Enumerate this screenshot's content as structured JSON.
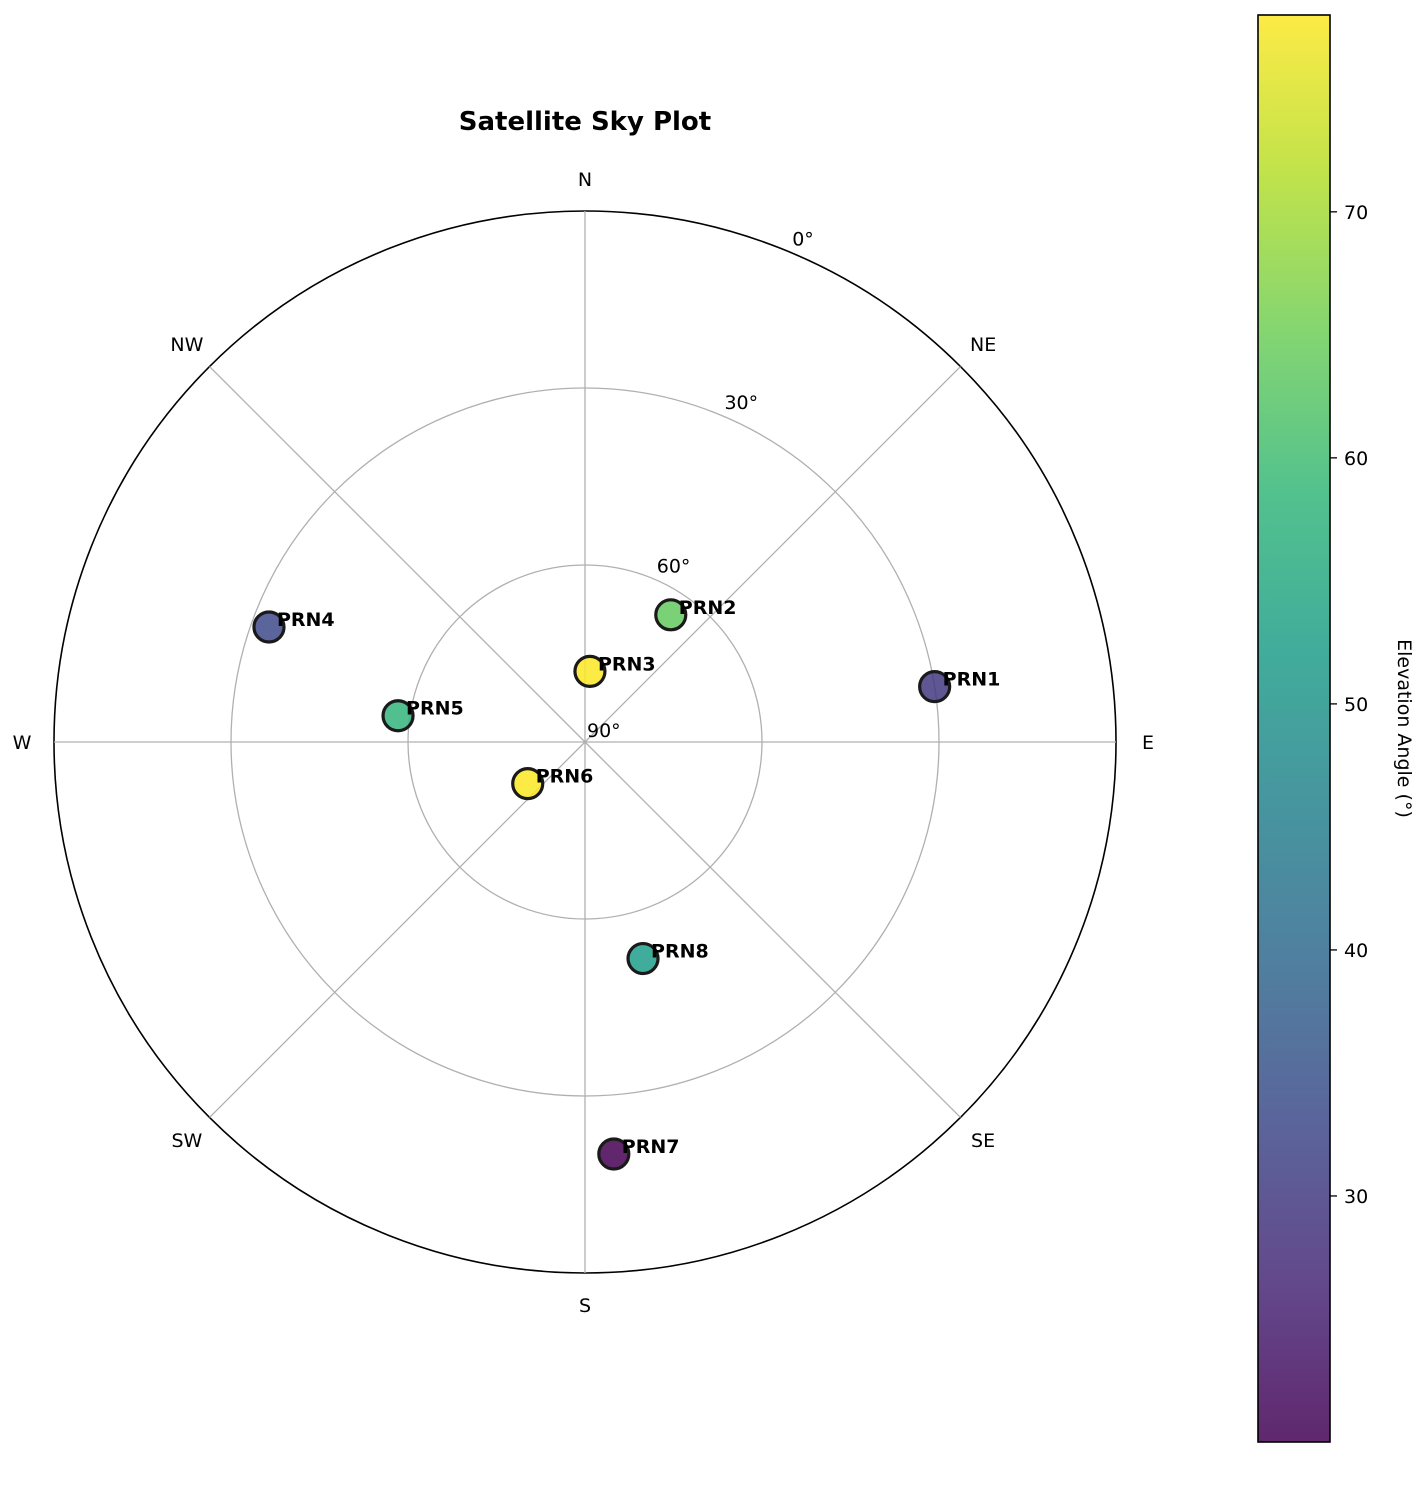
{
  "chart_data": {
    "type": "scatter",
    "projection": "polar-sky-plot",
    "title": "Satellite Sky Plot",
    "orientation": "north-up, clockwise azimuth",
    "directions": [
      "N",
      "NE",
      "E",
      "SE",
      "S",
      "SW",
      "W",
      "NW"
    ],
    "elevation_rings": [
      0,
      30,
      60,
      90
    ],
    "elevation_ring_labels": [
      "0°",
      "30°",
      "60°",
      "90°"
    ],
    "radial_range": [
      0,
      90
    ],
    "grid": true,
    "satellites": [
      {
        "name": "PRN1",
        "azimuth": 81,
        "elevation": 30
      },
      {
        "name": "PRN2",
        "azimuth": 34,
        "elevation": 64
      },
      {
        "name": "PRN3",
        "azimuth": 4,
        "elevation": 78
      },
      {
        "name": "PRN4",
        "azimuth": 290,
        "elevation": 33
      },
      {
        "name": "PRN5",
        "azimuth": 278,
        "elevation": 58
      },
      {
        "name": "PRN6",
        "azimuth": 234,
        "elevation": 78
      },
      {
        "name": "PRN7",
        "azimuth": 176,
        "elevation": 20
      },
      {
        "name": "PRN8",
        "azimuth": 165,
        "elevation": 52
      }
    ],
    "colorbar": {
      "label": "Elevation Angle (°)",
      "range": [
        20,
        78
      ],
      "ticks": [
        30,
        40,
        50,
        60,
        70
      ],
      "colormap": "viridis",
      "placement": "right"
    }
  },
  "colors": {
    "grid": "#b0b0b0",
    "frame": "#000000",
    "marker_edge": "#1a1a1a",
    "viridis": [
      "#440154",
      "#482878",
      "#3e4989",
      "#31688e",
      "#26828e",
      "#1f9e89",
      "#35b779",
      "#6ece58",
      "#b5de2b",
      "#fde725"
    ]
  }
}
